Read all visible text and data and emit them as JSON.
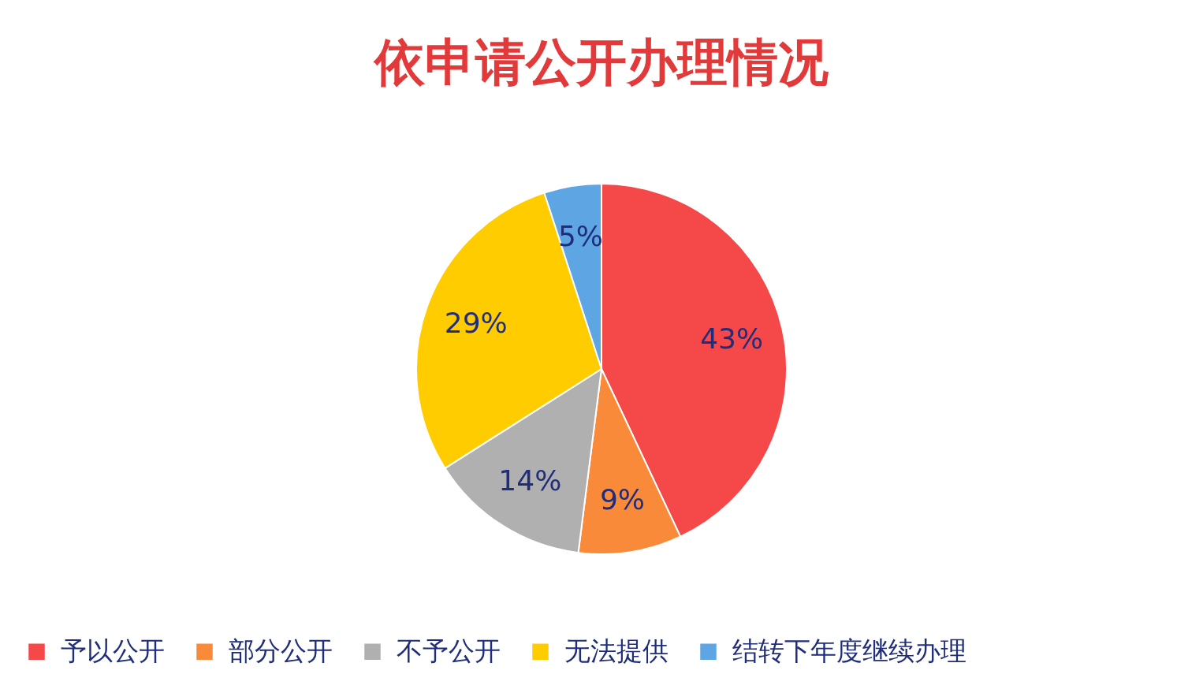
{
  "chart_data": {
    "type": "pie",
    "title": "依申请公开办理情况",
    "categories": [
      "予以公开",
      "部分公开",
      "不予公开",
      "无法提供",
      "结转下年度继续办理"
    ],
    "values": [
      43,
      9,
      14,
      29,
      5
    ],
    "colors": [
      "#f54848",
      "#f98a3a",
      "#b0b0b0",
      "#ffcc00",
      "#5ea5e3"
    ],
    "value_labels": [
      "43%",
      "9%",
      "14%",
      "29%",
      "5%"
    ],
    "legend": "bottom"
  }
}
